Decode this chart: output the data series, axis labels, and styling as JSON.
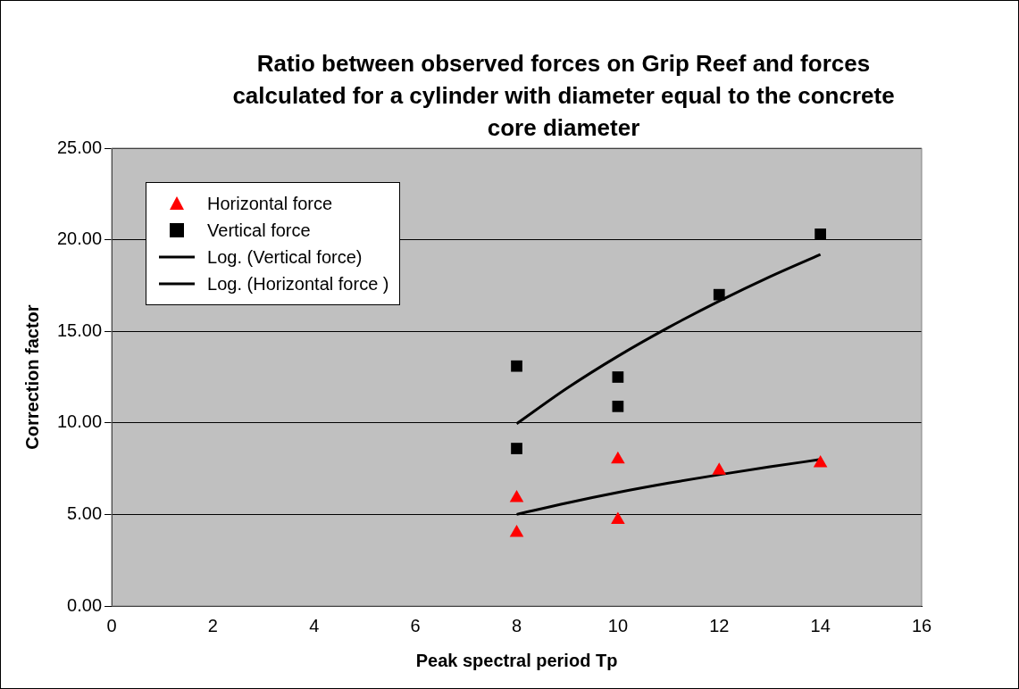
{
  "chart_data": {
    "type": "scatter",
    "title": "Ratio between observed forces on Grip Reef and forces calculated for a cylinder with diameter equal to the concrete core diameter",
    "xlabel": "Peak spectral period Tp",
    "ylabel": "Correction factor",
    "xlim": [
      0,
      16
    ],
    "xticks": [
      0,
      2,
      4,
      6,
      8,
      10,
      12,
      14,
      16
    ],
    "ylim": [
      0,
      25
    ],
    "yticks": [
      {
        "value": 0,
        "label": "0.00"
      },
      {
        "value": 5,
        "label": "5.00"
      },
      {
        "value": 10,
        "label": "10.00"
      },
      {
        "value": 15,
        "label": "15.00"
      },
      {
        "value": 20,
        "label": "20.00"
      },
      {
        "value": 25,
        "label": "25.00"
      }
    ],
    "grid": "y",
    "legend": "top left",
    "series": [
      {
        "name": "Horizontal force",
        "type": "scatter",
        "marker": "triangle",
        "color": "#ff0000",
        "x": [
          8,
          8,
          10,
          10,
          12,
          14
        ],
        "values": [
          5.9,
          4.0,
          8.0,
          4.7,
          7.4,
          7.8
        ]
      },
      {
        "name": "Vertical force",
        "type": "scatter",
        "marker": "square",
        "color": "#000000",
        "x": [
          8,
          8,
          10,
          10,
          12,
          14
        ],
        "values": [
          13.1,
          8.6,
          12.5,
          10.9,
          17.0,
          20.3
        ]
      },
      {
        "name": "Log. (Vertical force)",
        "type": "line",
        "marker": "none",
        "color": "#000000",
        "x": [
          8,
          9,
          10,
          11,
          12,
          13,
          14
        ],
        "values": [
          9.95,
          11.9,
          13.64,
          15.21,
          16.65,
          17.98,
          19.2
        ]
      },
      {
        "name": "Log. (Horizontal force )",
        "type": "line",
        "marker": "none",
        "color": "#000000",
        "x": [
          8,
          9,
          10,
          11,
          12,
          13,
          14
        ],
        "values": [
          5.0,
          5.63,
          6.2,
          6.71,
          7.17,
          7.6,
          8.0
        ]
      }
    ]
  }
}
